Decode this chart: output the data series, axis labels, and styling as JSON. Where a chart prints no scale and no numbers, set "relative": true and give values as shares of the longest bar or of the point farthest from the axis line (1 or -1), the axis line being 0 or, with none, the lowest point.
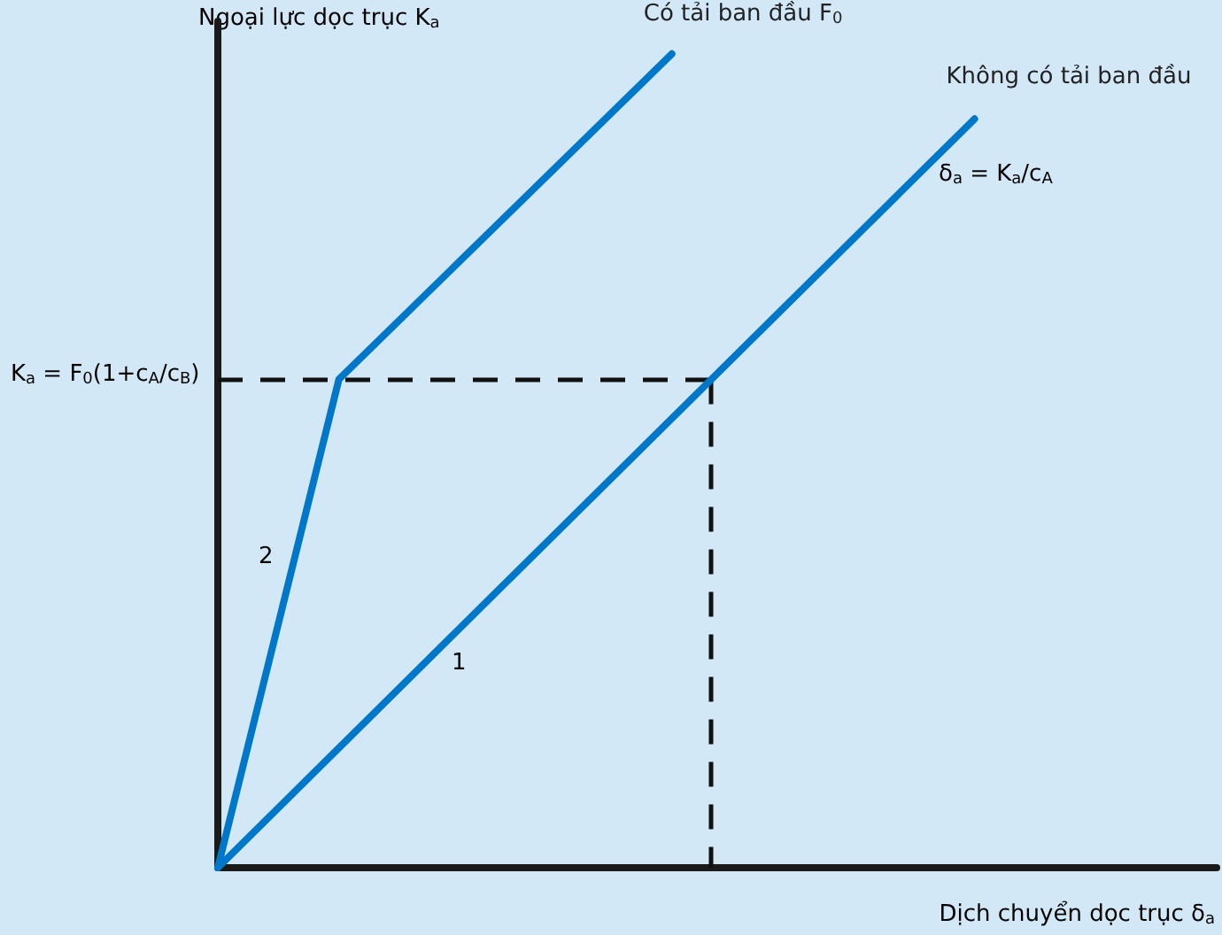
{
  "chart_data": {
    "type": "line",
    "relative": true,
    "grid": false,
    "xlabel": "Dịch chuyển dọc trục δ$_{a}$",
    "ylabel": "Ngoại lực dọc trục K$_{a}$",
    "categories": [
      null,
      null,
      null,
      null,
      null,
      null,
      null,
      null,
      null,
      null,
      null,
      null,
      null,
      null,
      null,
      null,
      null,
      null,
      null,
      null,
      null,
      null,
      null,
      null,
      null,
      null,
      null,
      null,
      null,
      null,
      null,
      null,
      null,
      null
    ],
    "series": [
      {
        "name": "Không có tải ban đầu",
        "color": "#0077c8",
        "values": [
          0,
          null,
          null,
          null,
          null,
          null,
          null,
          null,
          null,
          null,
          null,
          null,
          null,
          null,
          null,
          null,
          null,
          null,
          null,
          null,
          null,
          null,
          null,
          null,
          null,
          0.92,
          null,
          null,
          null,
          null,
          null,
          null,
          null,
          null
        ]
      },
      {
        "name": "Có tải ban đầu F$_{0}$",
        "color": "#0077c8",
        "values": [
          0,
          null,
          null,
          null,
          0.6,
          null,
          null,
          null,
          null,
          null,
          null,
          null,
          null,
          null,
          null,
          1,
          null,
          null,
          null,
          null,
          null,
          null,
          null,
          null,
          null,
          null,
          null,
          null,
          null,
          null,
          null,
          null,
          null,
          null
        ]
      }
    ],
    "ref_lines": [
      {
        "axis": "y",
        "value": 0.6,
        "label": "K$_{a}$ = F$_{0}$(1+c$_{A}$/c$_{B}$)",
        "color": "#111111",
        "line_style": "dashed"
      }
    ],
    "annotations": [
      "1",
      "2",
      "δ$_{a}$ = K$_{a}$/c$_{A}$"
    ]
  }
}
